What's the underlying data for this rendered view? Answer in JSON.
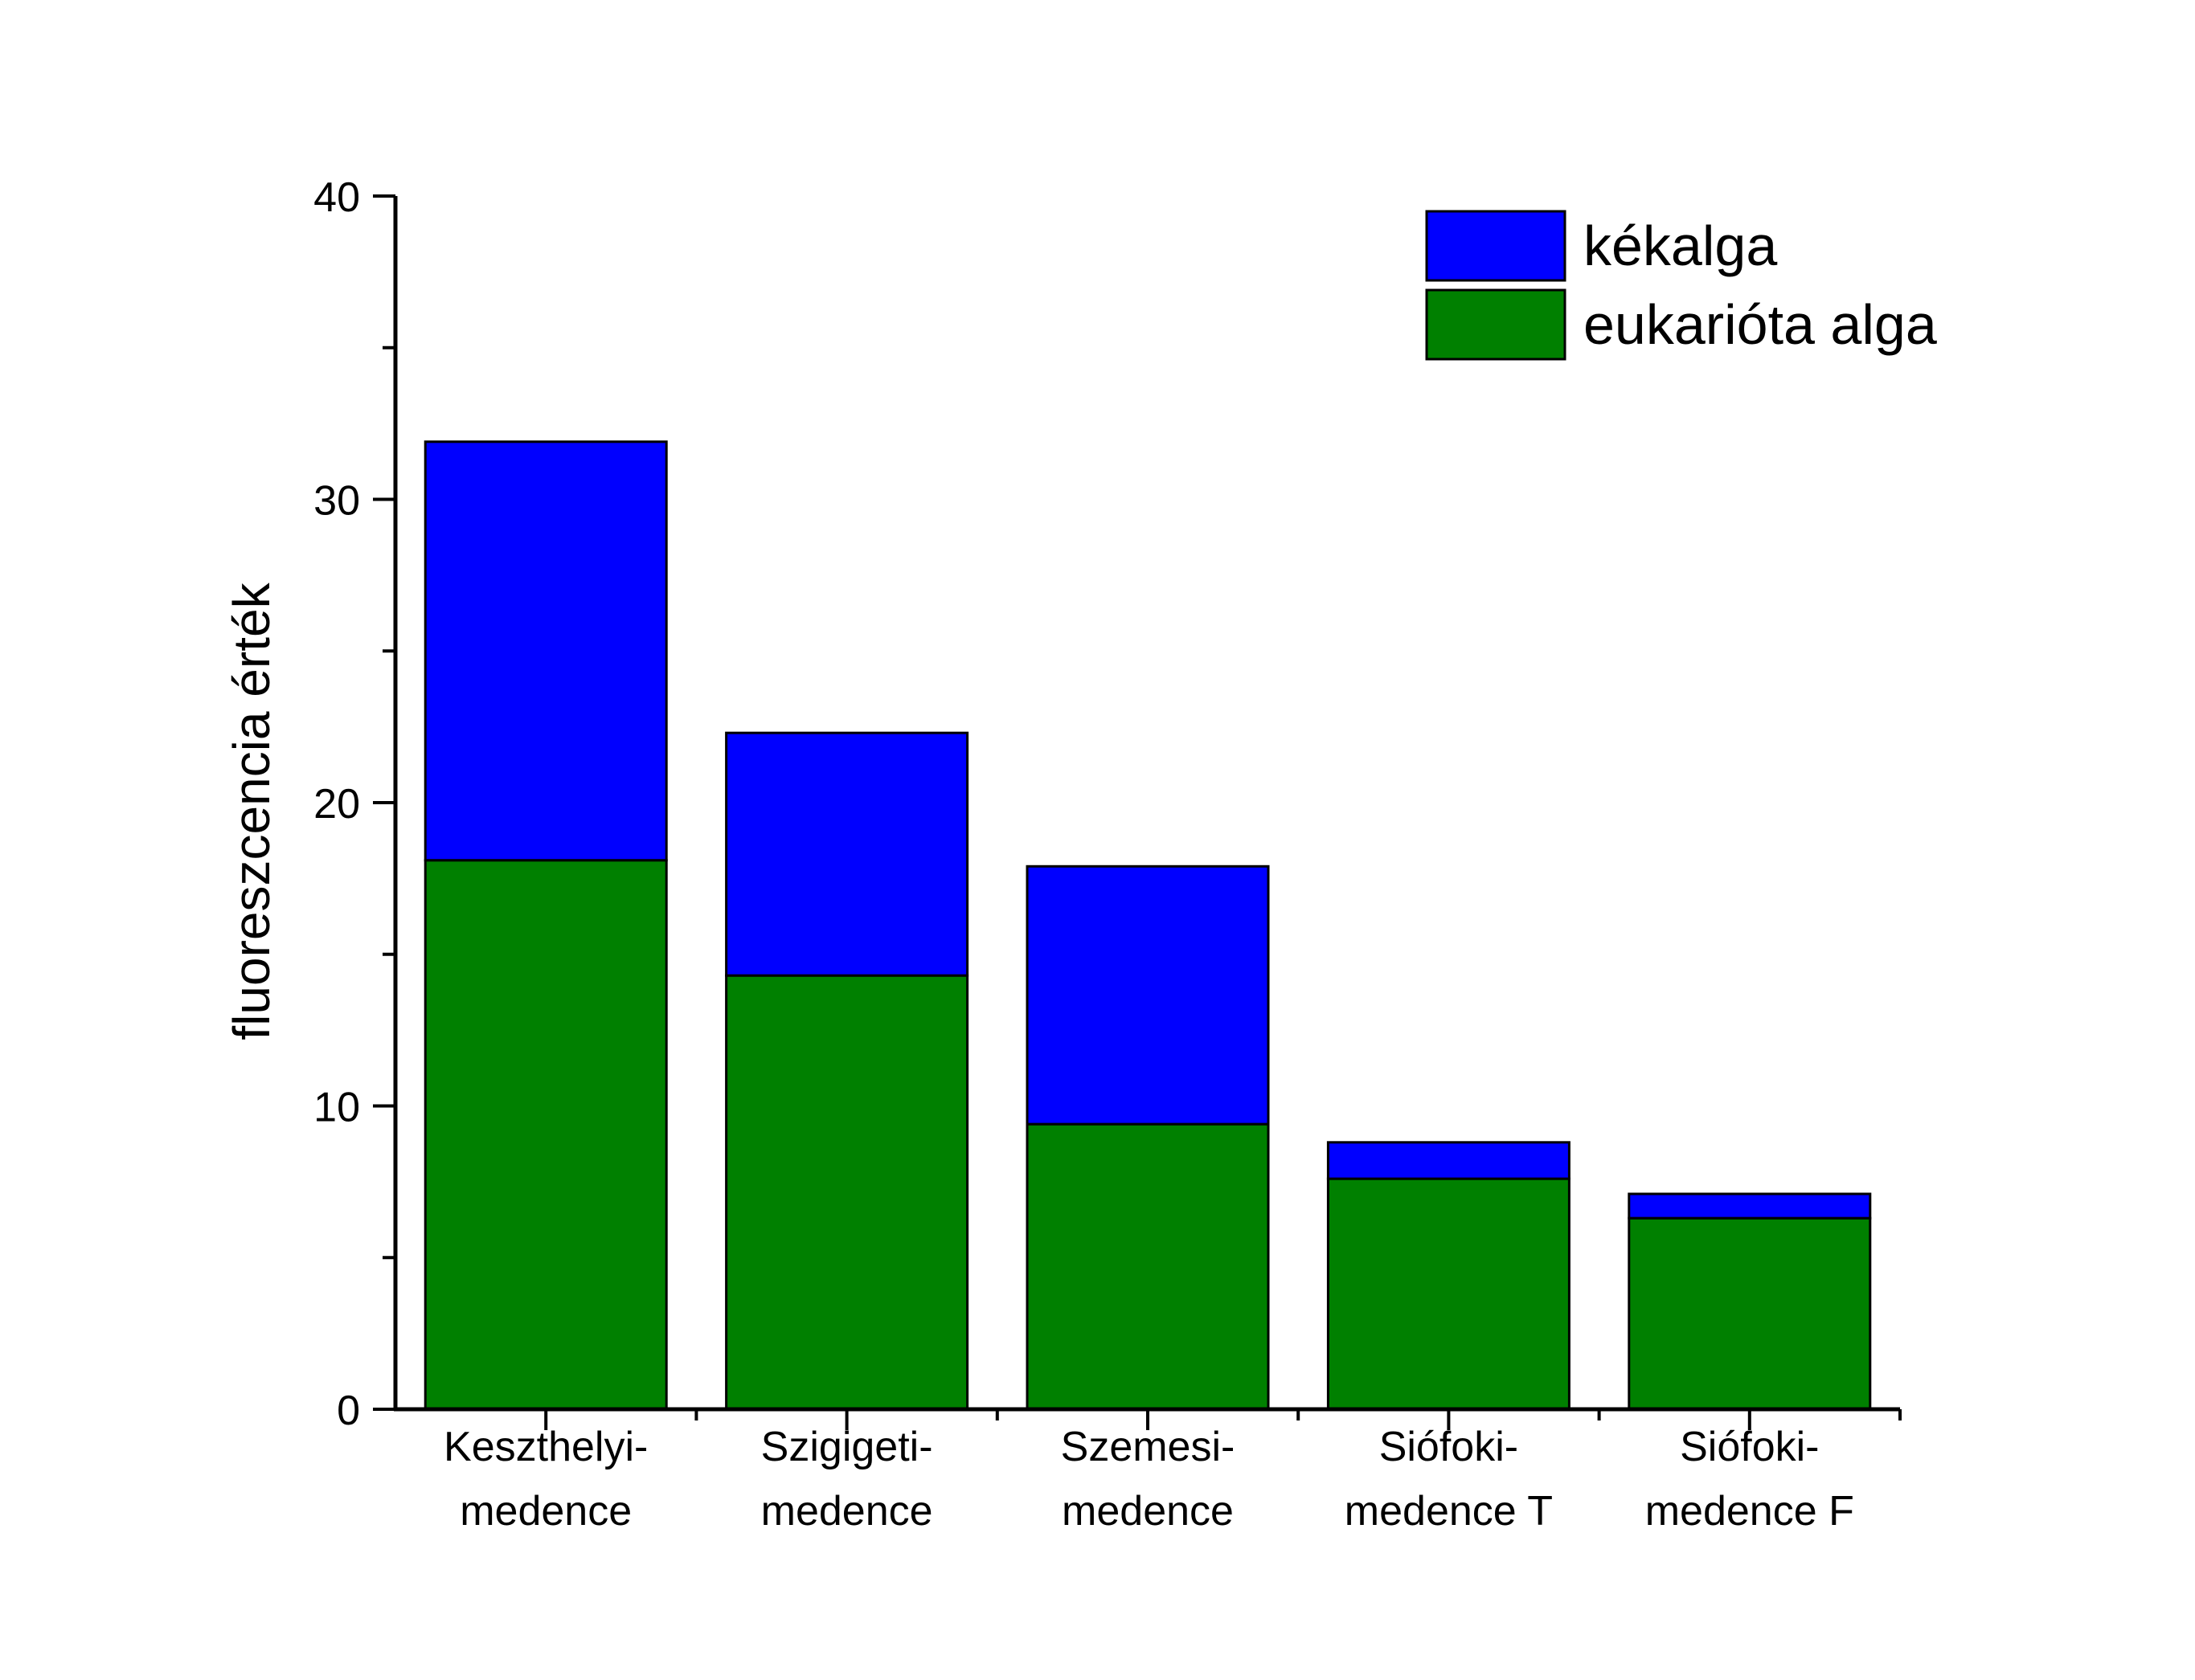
{
  "chart_data": {
    "type": "bar",
    "stacked": true,
    "categories": [
      [
        "Keszthelyi-",
        "medence"
      ],
      [
        "Szigigeti-",
        "medence"
      ],
      [
        "Szemesi-",
        "medence"
      ],
      [
        "Siófoki-",
        "medence T"
      ],
      [
        "Siófoki-",
        "medence F"
      ]
    ],
    "series": [
      {
        "name": "eukarióta alga",
        "color": "#008000",
        "values": [
          18.1,
          14.3,
          9.4,
          7.6,
          6.3
        ]
      },
      {
        "name": "kékalga",
        "color": "#0000ff",
        "values": [
          13.8,
          8.0,
          8.5,
          1.2,
          0.8
        ]
      }
    ],
    "totals": [
      31.9,
      22.3,
      17.9,
      8.8,
      7.1
    ],
    "legend_order": [
      "kékalga",
      "eukarióta alga"
    ],
    "legend_position": "top-right",
    "title": "",
    "xlabel": "",
    "ylabel": "fluoreszcencia érték",
    "ylim": [
      0,
      40
    ],
    "yticks": [
      0,
      10,
      20,
      30,
      40
    ],
    "y_minor_step": 5,
    "grid": false
  }
}
